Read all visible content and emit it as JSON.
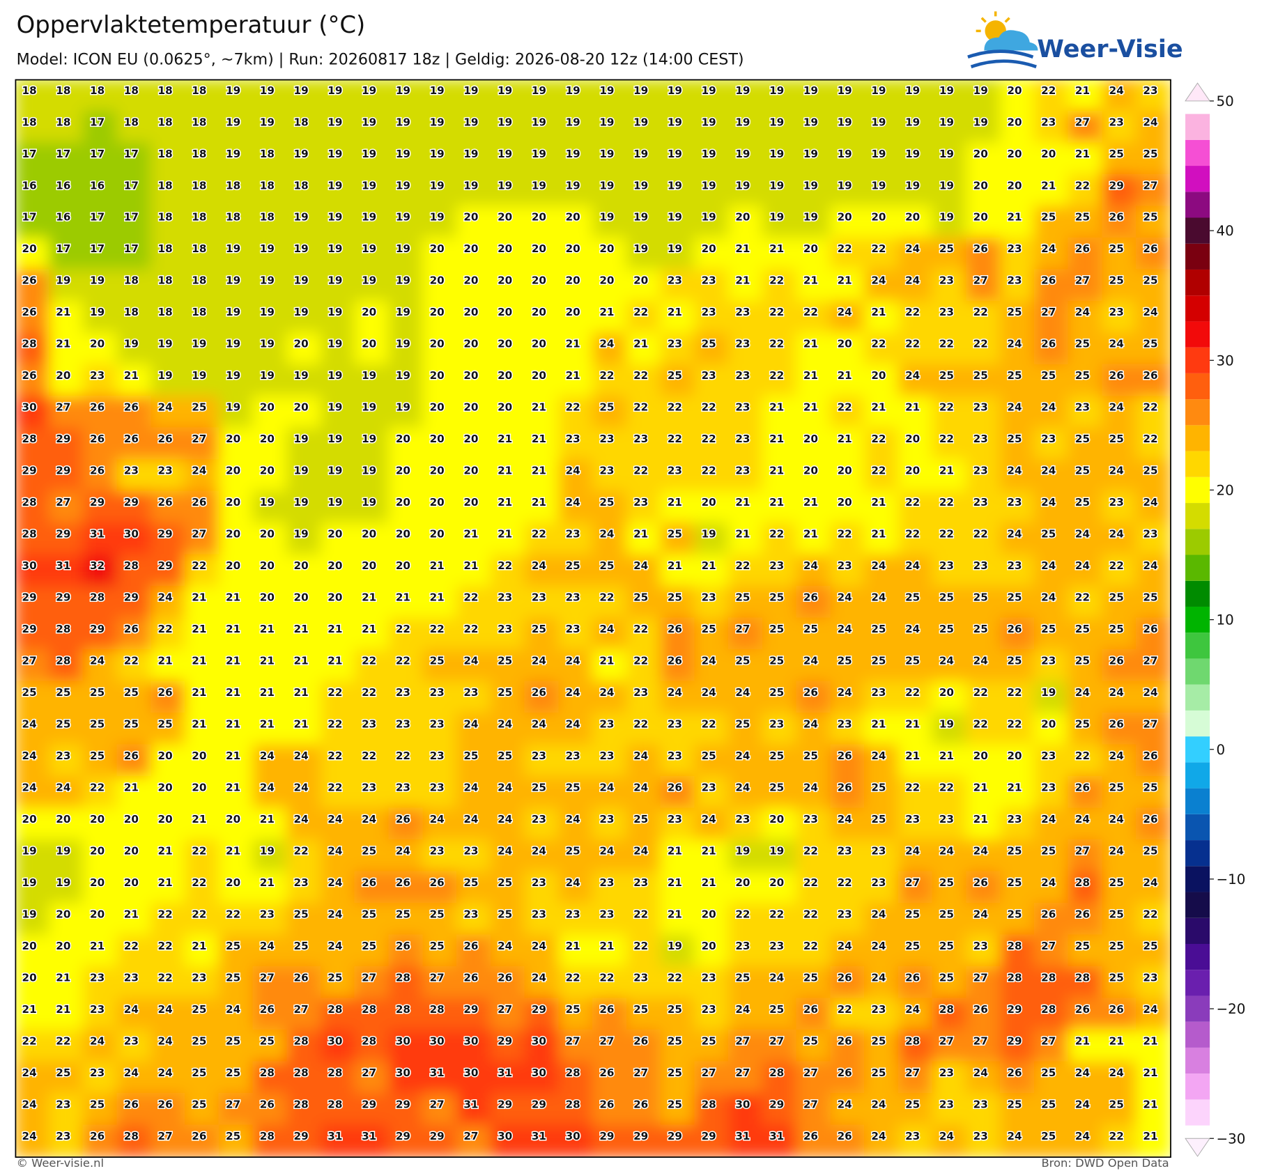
{
  "header": {
    "title": "Oppervlaktetemperatuur (°C)",
    "subtitle": "Model: ICON EU (0.0625°, ~7km)  |  Run: 20260817 18z  |  Geldig: 2026-08-20 12z (14:00 CEST)"
  },
  "logo": "Weer-Visie",
  "chart_data": {
    "type": "heatmap",
    "values": [
      [
        18,
        18,
        18,
        18,
        18,
        18,
        19,
        19,
        19,
        19,
        19,
        19,
        19,
        19,
        19,
        19,
        19,
        19,
        19,
        19,
        19,
        19,
        19,
        19,
        19,
        19,
        19,
        19,
        19,
        20,
        22,
        21,
        24,
        23
      ],
      [
        18,
        18,
        17,
        18,
        18,
        18,
        19,
        19,
        18,
        19,
        19,
        19,
        19,
        19,
        19,
        19,
        19,
        19,
        19,
        19,
        19,
        19,
        19,
        19,
        19,
        19,
        19,
        19,
        19,
        20,
        23,
        27,
        23,
        24
      ],
      [
        17,
        17,
        17,
        17,
        18,
        18,
        19,
        18,
        19,
        19,
        19,
        19,
        19,
        19,
        19,
        19,
        19,
        19,
        19,
        19,
        19,
        19,
        19,
        19,
        19,
        19,
        19,
        19,
        20,
        20,
        20,
        21,
        25,
        25
      ],
      [
        16,
        16,
        16,
        17,
        18,
        18,
        18,
        18,
        18,
        19,
        19,
        19,
        19,
        19,
        19,
        19,
        19,
        19,
        19,
        19,
        19,
        19,
        19,
        19,
        19,
        19,
        19,
        19,
        20,
        20,
        21,
        22,
        29,
        27
      ],
      [
        17,
        16,
        17,
        17,
        18,
        18,
        18,
        18,
        19,
        19,
        19,
        19,
        19,
        20,
        20,
        20,
        20,
        19,
        19,
        19,
        19,
        20,
        19,
        19,
        20,
        20,
        20,
        19,
        20,
        21,
        25,
        25,
        26,
        25
      ],
      [
        20,
        17,
        17,
        17,
        18,
        18,
        19,
        19,
        19,
        19,
        19,
        19,
        20,
        20,
        20,
        20,
        20,
        20,
        19,
        19,
        20,
        21,
        21,
        20,
        22,
        22,
        24,
        25,
        26,
        23,
        24,
        26,
        25,
        26
      ],
      [
        26,
        19,
        19,
        18,
        18,
        18,
        19,
        19,
        19,
        19,
        19,
        19,
        20,
        20,
        20,
        20,
        20,
        20,
        20,
        23,
        23,
        21,
        22,
        21,
        21,
        24,
        24,
        23,
        27,
        23,
        26,
        27,
        25,
        25
      ],
      [
        26,
        21,
        19,
        18,
        18,
        18,
        19,
        19,
        19,
        19,
        20,
        19,
        20,
        20,
        20,
        20,
        20,
        21,
        22,
        21,
        23,
        23,
        22,
        22,
        24,
        21,
        22,
        23,
        22,
        25,
        27,
        24,
        23,
        24
      ],
      [
        28,
        21,
        20,
        19,
        19,
        19,
        19,
        19,
        20,
        19,
        20,
        19,
        20,
        20,
        20,
        20,
        21,
        24,
        21,
        23,
        25,
        23,
        22,
        21,
        20,
        22,
        22,
        22,
        22,
        24,
        26,
        25,
        24,
        25
      ],
      [
        26,
        20,
        23,
        21,
        19,
        19,
        19,
        19,
        19,
        19,
        19,
        19,
        20,
        20,
        20,
        20,
        21,
        22,
        22,
        25,
        23,
        23,
        22,
        21,
        21,
        20,
        24,
        25,
        25,
        25,
        25,
        25,
        26,
        26
      ],
      [
        30,
        27,
        26,
        26,
        24,
        25,
        19,
        20,
        20,
        19,
        19,
        19,
        20,
        20,
        20,
        21,
        22,
        25,
        22,
        22,
        22,
        23,
        21,
        21,
        22,
        21,
        21,
        22,
        23,
        24,
        24,
        23,
        24,
        22
      ],
      [
        28,
        29,
        26,
        26,
        26,
        27,
        20,
        20,
        19,
        19,
        19,
        20,
        20,
        20,
        21,
        21,
        23,
        23,
        23,
        22,
        22,
        23,
        21,
        20,
        21,
        22,
        20,
        22,
        23,
        25,
        23,
        25,
        25,
        22
      ],
      [
        29,
        29,
        26,
        23,
        23,
        24,
        20,
        20,
        19,
        19,
        19,
        20,
        20,
        20,
        21,
        21,
        24,
        23,
        22,
        23,
        22,
        23,
        21,
        20,
        20,
        22,
        20,
        21,
        23,
        24,
        24,
        25,
        24,
        25
      ],
      [
        28,
        27,
        29,
        29,
        26,
        26,
        20,
        19,
        19,
        19,
        19,
        20,
        20,
        20,
        21,
        21,
        24,
        25,
        23,
        21,
        20,
        21,
        21,
        21,
        20,
        21,
        22,
        22,
        23,
        23,
        24,
        25,
        23,
        24
      ],
      [
        28,
        29,
        31,
        30,
        29,
        27,
        20,
        20,
        19,
        20,
        20,
        20,
        20,
        21,
        21,
        22,
        23,
        24,
        21,
        25,
        19,
        21,
        22,
        21,
        22,
        21,
        22,
        22,
        22,
        24,
        25,
        24,
        24,
        23
      ],
      [
        30,
        31,
        32,
        28,
        29,
        22,
        20,
        20,
        20,
        20,
        20,
        20,
        21,
        21,
        22,
        24,
        25,
        25,
        24,
        21,
        21,
        22,
        23,
        24,
        23,
        24,
        24,
        23,
        23,
        23,
        24,
        24,
        22,
        24
      ],
      [
        29,
        29,
        28,
        29,
        24,
        21,
        21,
        20,
        20,
        20,
        21,
        21,
        21,
        22,
        23,
        23,
        23,
        22,
        25,
        25,
        23,
        25,
        25,
        26,
        24,
        24,
        25,
        25,
        25,
        25,
        24,
        22,
        25,
        25
      ],
      [
        29,
        28,
        29,
        26,
        22,
        21,
        21,
        21,
        21,
        21,
        21,
        22,
        22,
        22,
        23,
        25,
        23,
        24,
        22,
        26,
        25,
        27,
        25,
        25,
        24,
        25,
        24,
        25,
        25,
        26,
        25,
        25,
        25,
        26
      ],
      [
        27,
        28,
        24,
        22,
        21,
        21,
        21,
        21,
        21,
        21,
        22,
        22,
        25,
        24,
        25,
        24,
        24,
        21,
        22,
        26,
        24,
        25,
        25,
        24,
        25,
        25,
        25,
        24,
        24,
        25,
        23,
        25,
        26,
        27
      ],
      [
        25,
        25,
        25,
        25,
        26,
        21,
        21,
        21,
        21,
        22,
        22,
        23,
        23,
        23,
        25,
        26,
        24,
        24,
        23,
        24,
        24,
        24,
        25,
        26,
        24,
        23,
        22,
        20,
        22,
        22,
        19,
        24,
        24,
        24
      ],
      [
        24,
        25,
        25,
        25,
        25,
        21,
        21,
        21,
        21,
        22,
        23,
        23,
        23,
        24,
        24,
        24,
        24,
        23,
        22,
        23,
        22,
        25,
        23,
        24,
        23,
        21,
        21,
        19,
        22,
        22,
        20,
        25,
        26,
        27
      ],
      [
        24,
        23,
        25,
        26,
        20,
        20,
        21,
        24,
        24,
        22,
        22,
        22,
        23,
        25,
        25,
        23,
        23,
        23,
        24,
        23,
        25,
        24,
        25,
        25,
        26,
        24,
        21,
        21,
        20,
        20,
        23,
        22,
        24,
        26
      ],
      [
        24,
        24,
        22,
        21,
        20,
        20,
        21,
        24,
        24,
        22,
        23,
        23,
        23,
        24,
        24,
        25,
        25,
        24,
        24,
        26,
        23,
        24,
        25,
        24,
        26,
        25,
        22,
        22,
        21,
        21,
        23,
        26,
        25,
        25
      ],
      [
        20,
        20,
        20,
        20,
        20,
        21,
        20,
        21,
        24,
        24,
        24,
        26,
        24,
        24,
        24,
        23,
        24,
        23,
        25,
        23,
        24,
        23,
        20,
        23,
        24,
        25,
        23,
        23,
        21,
        23,
        24,
        24,
        24,
        26
      ],
      [
        19,
        19,
        20,
        20,
        21,
        22,
        21,
        19,
        22,
        24,
        25,
        24,
        23,
        23,
        24,
        24,
        25,
        24,
        24,
        21,
        21,
        19,
        19,
        22,
        23,
        23,
        24,
        24,
        24,
        25,
        25,
        27,
        24,
        25
      ],
      [
        19,
        19,
        20,
        20,
        21,
        22,
        20,
        21,
        23,
        24,
        26,
        26,
        26,
        25,
        25,
        23,
        24,
        23,
        23,
        21,
        21,
        20,
        20,
        22,
        22,
        23,
        27,
        25,
        26,
        25,
        24,
        28,
        25,
        24
      ],
      [
        19,
        20,
        20,
        21,
        22,
        22,
        22,
        23,
        25,
        24,
        25,
        25,
        25,
        23,
        25,
        23,
        23,
        23,
        22,
        21,
        20,
        22,
        22,
        22,
        23,
        24,
        25,
        25,
        24,
        25,
        26,
        26,
        25,
        22
      ],
      [
        20,
        20,
        21,
        22,
        22,
        21,
        25,
        24,
        25,
        24,
        25,
        26,
        25,
        26,
        24,
        24,
        21,
        21,
        22,
        19,
        20,
        23,
        23,
        22,
        24,
        24,
        25,
        25,
        23,
        28,
        27,
        25,
        25,
        25
      ],
      [
        20,
        21,
        23,
        23,
        22,
        23,
        25,
        27,
        26,
        25,
        27,
        28,
        27,
        26,
        26,
        24,
        22,
        22,
        23,
        22,
        23,
        25,
        24,
        25,
        26,
        24,
        26,
        25,
        27,
        28,
        28,
        28,
        25,
        23
      ],
      [
        21,
        21,
        23,
        24,
        24,
        25,
        24,
        26,
        27,
        28,
        28,
        28,
        28,
        29,
        27,
        29,
        25,
        26,
        25,
        25,
        23,
        24,
        25,
        26,
        22,
        23,
        24,
        28,
        26,
        29,
        28,
        26,
        26,
        24
      ],
      [
        22,
        22,
        24,
        23,
        24,
        25,
        25,
        25,
        28,
        30,
        28,
        30,
        30,
        30,
        29,
        30,
        27,
        27,
        26,
        25,
        25,
        27,
        27,
        25,
        26,
        25,
        28,
        27,
        27,
        29,
        27,
        21,
        21,
        21
      ],
      [
        24,
        25,
        23,
        24,
        24,
        25,
        25,
        28,
        28,
        28,
        27,
        30,
        31,
        30,
        31,
        30,
        28,
        26,
        27,
        25,
        27,
        27,
        28,
        27,
        26,
        25,
        27,
        23,
        24,
        26,
        25,
        24,
        24,
        21
      ],
      [
        24,
        23,
        25,
        26,
        26,
        25,
        27,
        26,
        28,
        28,
        29,
        29,
        27,
        31,
        29,
        29,
        28,
        26,
        26,
        25,
        28,
        30,
        29,
        27,
        24,
        24,
        25,
        23,
        23,
        25,
        25,
        24,
        25,
        21
      ],
      [
        24,
        23,
        26,
        28,
        27,
        26,
        25,
        28,
        29,
        31,
        31,
        29,
        29,
        27,
        30,
        31,
        30,
        29,
        29,
        29,
        29,
        31,
        31,
        26,
        26,
        24,
        23,
        24,
        23,
        24,
        25,
        24,
        22,
        21
      ]
    ],
    "colorbar": {
      "lim": [
        -30,
        50
      ],
      "ticks": [
        50,
        40,
        30,
        20,
        10,
        0,
        {
          "value": -10,
          "label": "−10"
        },
        {
          "value": -20,
          "label": "−20"
        },
        {
          "value": -30,
          "label": "−30"
        }
      ],
      "colors": [
        "#fdf0fd",
        "#fcd4fc",
        "#f3a6f3",
        "#d880e0",
        "#b55bcc",
        "#8a3cbb",
        "#6a1fae",
        "#4a0d95",
        "#2a0a6a",
        "#150c4a",
        "#0a1260",
        "#06308f",
        "#0a55b0",
        "#0a80d0",
        "#10a8e8",
        "#33cfff",
        "#d6fcd6",
        "#a6eca6",
        "#6fd86f",
        "#3ec63e",
        "#00b400",
        "#008b00",
        "#5ab800",
        "#9ccb00",
        "#d4dc00",
        "#ffff00",
        "#ffd700",
        "#ffb400",
        "#ff8a10",
        "#ff5f0e",
        "#ff3a10",
        "#f20a0a",
        "#d40000",
        "#b00000",
        "#7a0010",
        "#4a0a2f",
        "#8c0a80",
        "#d10fbf",
        "#f54fd4",
        "#fbb3e0",
        "#ffe8f8"
      ]
    }
  },
  "footer": {
    "left": "© Weer-visie.nl",
    "right": "Bron: DWD Open Data"
  }
}
